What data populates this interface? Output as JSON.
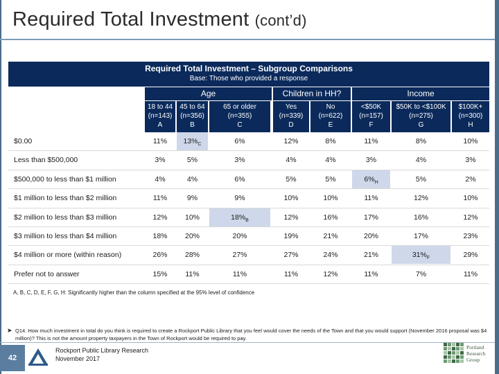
{
  "slide": {
    "title": "Required Total Investment",
    "title_suffix": "(cont’d)"
  },
  "table": {
    "title": "Required Total Investment – Subgroup Comparisons",
    "base": "Base: Those who provided a response",
    "groups": [
      "Age",
      "Children in HH?",
      "Income"
    ],
    "columns": [
      {
        "label": "18 to 44",
        "n": "(n=143)",
        "letter": "A"
      },
      {
        "label": "45 to 64",
        "n": "(n=356)",
        "letter": "B"
      },
      {
        "label": "65 or older",
        "n": "(n=355)",
        "letter": "C"
      },
      {
        "label": "Yes",
        "n": "(n=339)",
        "letter": "D"
      },
      {
        "label": "No",
        "n": "(n=622)",
        "letter": "E"
      },
      {
        "label": "<$50K",
        "n": "(n=157)",
        "letter": "F"
      },
      {
        "label": "$50K to <$100K",
        "n": "(n=275)",
        "letter": "G"
      },
      {
        "label": "$100K+",
        "n": "(n=300)",
        "letter": "H"
      }
    ],
    "rows": [
      {
        "label": "$0.00",
        "values": [
          "11%",
          "13%",
          "6%",
          "12%",
          "8%",
          "11%",
          "8%",
          "10%"
        ],
        "sig": {
          "1": "C"
        }
      },
      {
        "label": "Less than $500,000",
        "values": [
          "3%",
          "5%",
          "3%",
          "4%",
          "4%",
          "3%",
          "4%",
          "3%"
        ],
        "sig": {}
      },
      {
        "label": "$500,000 to less than $1 million",
        "values": [
          "4%",
          "4%",
          "6%",
          "5%",
          "5%",
          "6%",
          "5%",
          "2%"
        ],
        "sig": {
          "5": "H"
        }
      },
      {
        "label": "$1 million to less than $2 million",
        "values": [
          "11%",
          "9%",
          "9%",
          "10%",
          "10%",
          "11%",
          "12%",
          "10%"
        ],
        "sig": {}
      },
      {
        "label": "$2 million to less than $3 million",
        "values": [
          "12%",
          "10%",
          "18%",
          "12%",
          "16%",
          "17%",
          "16%",
          "12%"
        ],
        "sig": {
          "2": "B"
        }
      },
      {
        "label": "$3 million to less than $4 million",
        "values": [
          "18%",
          "20%",
          "20%",
          "19%",
          "21%",
          "20%",
          "17%",
          "23%"
        ],
        "sig": {}
      },
      {
        "label": "$4 million or more (within reason)",
        "values": [
          "26%",
          "28%",
          "27%",
          "27%",
          "24%",
          "21%",
          "31%",
          "29%"
        ],
        "sig": {
          "6": "F"
        }
      },
      {
        "label": "Prefer not to answer",
        "values": [
          "15%",
          "11%",
          "11%",
          "11%",
          "12%",
          "11%",
          "7%",
          "11%"
        ],
        "sig": {}
      }
    ],
    "highlight_color": "#cfd8ea",
    "header_color": "#0b2a5b"
  },
  "footnote": "A, B, C, D, E, F, G, H: Significantly higher than the column specified at the 95% level of confidence",
  "question_note": "Q14. How much investment in total do you think is required to create a Rockport Public Library that you feel would cover the needs of the Town and that you would support (November 2016 proposal was $4 million)? This is not the amount property taxpayers in the Town of Rockport would be required to pay.",
  "footer": {
    "page_number": "42",
    "line1": "Rockport Public Library Research",
    "line2": "November 2017",
    "brand_line1": "Portland",
    "brand_line2": "Research",
    "brand_line3": "Group"
  }
}
